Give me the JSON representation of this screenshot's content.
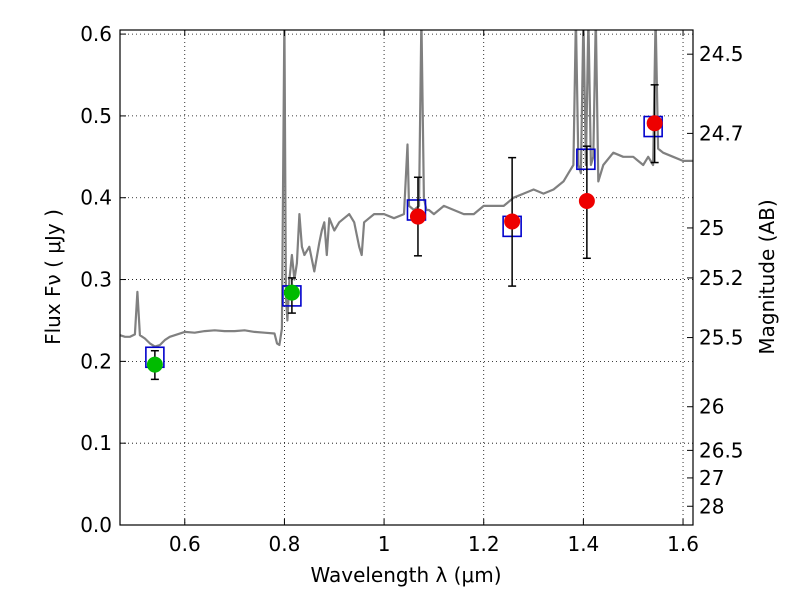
{
  "chart_data": {
    "type": "scatter",
    "title": "",
    "xlabel": "Wavelength  λ (μm)",
    "ylabel": "Flux  Fν  ( μJy )",
    "y2label": "Magnitude (AB)",
    "xlim": [
      0.47,
      1.62
    ],
    "ylim": [
      0.0,
      0.605
    ],
    "grid": true,
    "x_ticks": [
      "0.6",
      "0.8",
      "1",
      "1.2",
      "1.4",
      "1.6"
    ],
    "x_tick_values": [
      0.6,
      0.8,
      1.0,
      1.2,
      1.4,
      1.6
    ],
    "y_ticks": [
      "0.0",
      "0.1",
      "0.2",
      "0.3",
      "0.4",
      "0.5",
      "0.6"
    ],
    "y_tick_values": [
      0.0,
      0.1,
      0.2,
      0.3,
      0.4,
      0.5,
      0.6
    ],
    "y2_ticks": [
      "24.5",
      "24.7",
      "25",
      "25.2",
      "25.5",
      "26",
      "26.5",
      "27",
      "28"
    ],
    "y2_tick_values": [
      24.5,
      24.7,
      25.0,
      25.2,
      25.5,
      26.0,
      26.5,
      27.0,
      28.0
    ],
    "colors": {
      "spectrum": "#808080",
      "model_box": "#0000cc",
      "green": "#00bb00",
      "red": "#ee0000",
      "errorbar": "#000000"
    },
    "series": [
      {
        "type": "line",
        "color": "#808080",
        "x": [
          0.47,
          0.48,
          0.49,
          0.5,
          0.505,
          0.51,
          0.52,
          0.53,
          0.54,
          0.55,
          0.56,
          0.57,
          0.58,
          0.6,
          0.62,
          0.64,
          0.66,
          0.68,
          0.7,
          0.72,
          0.74,
          0.76,
          0.78,
          0.785,
          0.79,
          0.795,
          0.8,
          0.803,
          0.806,
          0.81,
          0.815,
          0.82,
          0.825,
          0.83,
          0.835,
          0.84,
          0.85,
          0.86,
          0.87,
          0.875,
          0.88,
          0.885,
          0.89,
          0.9,
          0.91,
          0.92,
          0.93,
          0.94,
          0.95,
          0.955,
          0.96,
          0.97,
          0.98,
          1.0,
          1.02,
          1.04,
          1.047,
          1.05,
          1.06,
          1.07,
          1.075,
          1.08,
          1.085,
          1.09,
          1.1,
          1.12,
          1.14,
          1.16,
          1.18,
          1.2,
          1.22,
          1.24,
          1.26,
          1.28,
          1.3,
          1.32,
          1.34,
          1.36,
          1.37,
          1.38,
          1.385,
          1.39,
          1.395,
          1.4,
          1.405,
          1.41,
          1.415,
          1.42,
          1.425,
          1.43,
          1.44,
          1.46,
          1.48,
          1.5,
          1.52,
          1.53,
          1.54,
          1.545,
          1.55,
          1.56,
          1.58,
          1.6,
          1.62
        ],
        "y": [
          0.232,
          0.23,
          0.23,
          0.233,
          0.285,
          0.232,
          0.228,
          0.222,
          0.218,
          0.22,
          0.226,
          0.23,
          0.232,
          0.236,
          0.235,
          0.237,
          0.238,
          0.237,
          0.237,
          0.238,
          0.236,
          0.235,
          0.234,
          0.222,
          0.22,
          0.24,
          0.62,
          0.28,
          0.25,
          0.3,
          0.33,
          0.3,
          0.32,
          0.38,
          0.34,
          0.33,
          0.34,
          0.31,
          0.345,
          0.36,
          0.37,
          0.33,
          0.375,
          0.36,
          0.37,
          0.375,
          0.38,
          0.37,
          0.34,
          0.33,
          0.37,
          0.375,
          0.38,
          0.38,
          0.375,
          0.38,
          0.465,
          0.39,
          0.385,
          0.39,
          0.62,
          0.4,
          0.385,
          0.385,
          0.38,
          0.39,
          0.385,
          0.38,
          0.38,
          0.39,
          0.39,
          0.39,
          0.4,
          0.405,
          0.41,
          0.405,
          0.41,
          0.42,
          0.43,
          0.44,
          0.62,
          0.44,
          0.43,
          0.62,
          0.44,
          0.62,
          0.44,
          0.45,
          0.62,
          0.42,
          0.44,
          0.455,
          0.45,
          0.45,
          0.44,
          0.45,
          0.44,
          0.62,
          0.46,
          0.455,
          0.45,
          0.445,
          0.445
        ]
      },
      {
        "name": "",
        "type": "box",
        "color": "#0000cc",
        "x": [
          0.54,
          0.815,
          1.065,
          1.257,
          1.405,
          1.54
        ],
        "y": [
          0.205,
          0.28,
          0.385,
          0.365,
          0.447,
          0.487
        ]
      },
      {
        "name": "",
        "type": "point",
        "color": "#00bb00",
        "x": [
          0.54,
          0.815
        ],
        "y": [
          0.196,
          0.284
        ],
        "yerr_low": [
          0.018,
          0.025
        ],
        "yerr_high": [
          0.017,
          0.018
        ]
      },
      {
        "name": "",
        "type": "point",
        "color": "#ee0000",
        "x": [
          1.068,
          1.257,
          1.407,
          1.543
        ],
        "y": [
          0.377,
          0.371,
          0.396,
          0.491
        ],
        "yerr_low": [
          0.048,
          0.079,
          0.07,
          0.048
        ],
        "yerr_high": [
          0.048,
          0.078,
          0.067,
          0.047
        ]
      }
    ]
  }
}
